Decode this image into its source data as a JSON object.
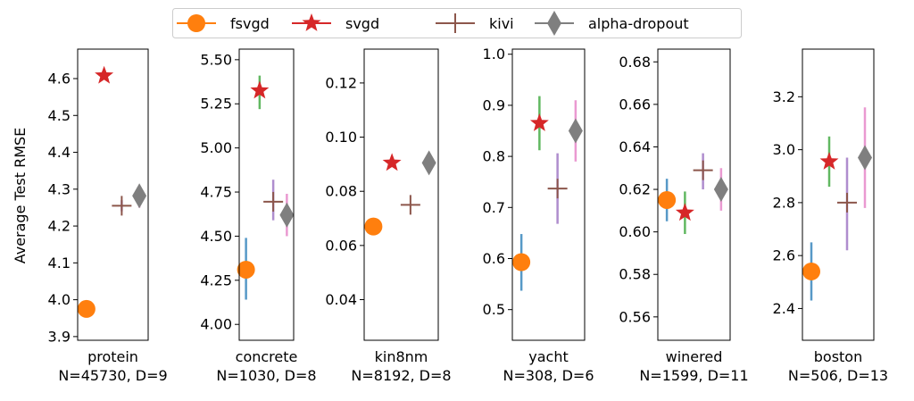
{
  "chart_data": {
    "type": "scatter",
    "ylabel": "Average Test RMSE",
    "legend_position": "top-center",
    "series": [
      {
        "name": "fsvgd",
        "color": "#ff7f0e",
        "marker": "circle",
        "error_color": "#1f77b4"
      },
      {
        "name": "svgd",
        "color": "#d62728",
        "marker": "star",
        "error_color": "#2ca02c"
      },
      {
        "name": "kivi",
        "color": "#8c564b",
        "marker": "plus",
        "error_color": "#9467bd"
      },
      {
        "name": "alpha-dropout",
        "color": "#7f7f7f",
        "marker": "diamond",
        "error_color": "#e377c2"
      }
    ],
    "panels": [
      {
        "name": "protein",
        "info": "N=45730, D=9",
        "ylim": [
          3.89,
          4.68
        ],
        "yticks": [
          3.9,
          4.0,
          4.1,
          4.2,
          4.3,
          4.4,
          4.5,
          4.6
        ],
        "ytick_labels": [
          "3.9",
          "4.0",
          "4.1",
          "4.2",
          "4.3",
          "4.4",
          "4.5",
          "4.6"
        ],
        "points": [
          {
            "series": "fsvgd",
            "value": 3.975,
            "lo": null,
            "hi": null
          },
          {
            "series": "svgd",
            "value": 4.608,
            "lo": null,
            "hi": null
          },
          {
            "series": "kivi",
            "value": 4.255,
            "lo": 4.24,
            "hi": 4.27
          },
          {
            "series": "alpha-dropout",
            "value": 4.282,
            "lo": 4.25,
            "hi": 4.31
          }
        ]
      },
      {
        "name": "concrete",
        "info": "N=1030, D=8",
        "ylim": [
          3.91,
          5.56
        ],
        "yticks": [
          4.0,
          4.25,
          4.5,
          4.75,
          5.0,
          5.25,
          5.5
        ],
        "ytick_labels": [
          "4.00",
          "4.25",
          "4.50",
          "4.75",
          "5.00",
          "5.25",
          "5.50"
        ],
        "points": [
          {
            "series": "fsvgd",
            "value": 4.31,
            "lo": 4.14,
            "hi": 4.49
          },
          {
            "series": "svgd",
            "value": 5.325,
            "lo": 5.22,
            "hi": 5.41
          },
          {
            "series": "kivi",
            "value": 4.695,
            "lo": 4.59,
            "hi": 4.82
          },
          {
            "series": "alpha-dropout",
            "value": 4.62,
            "lo": 4.5,
            "hi": 4.74
          }
        ]
      },
      {
        "name": "kin8nm",
        "info": "N=8192, D=8",
        "ylim": [
          0.025,
          0.1325
        ],
        "yticks": [
          0.04,
          0.06,
          0.08,
          0.1,
          0.12
        ],
        "ytick_labels": [
          "0.04",
          "0.06",
          "0.08",
          "0.10",
          "0.12"
        ],
        "points": [
          {
            "series": "fsvgd",
            "value": 0.067,
            "lo": null,
            "hi": null
          },
          {
            "series": "svgd",
            "value": 0.0905,
            "lo": null,
            "hi": null
          },
          {
            "series": "kivi",
            "value": 0.075,
            "lo": null,
            "hi": null
          },
          {
            "series": "alpha-dropout",
            "value": 0.0905,
            "lo": null,
            "hi": null
          }
        ]
      },
      {
        "name": "yacht",
        "info": "N=308, D=6",
        "ylim": [
          0.44,
          1.01
        ],
        "yticks": [
          0.5,
          0.6,
          0.7,
          0.8,
          0.9,
          1.0
        ],
        "ytick_labels": [
          "0.5",
          "0.6",
          "0.7",
          "0.8",
          "0.9",
          "1.0"
        ],
        "points": [
          {
            "series": "fsvgd",
            "value": 0.593,
            "lo": 0.537,
            "hi": 0.648
          },
          {
            "series": "svgd",
            "value": 0.865,
            "lo": 0.812,
            "hi": 0.918
          },
          {
            "series": "kivi",
            "value": 0.737,
            "lo": 0.668,
            "hi": 0.806
          },
          {
            "series": "alpha-dropout",
            "value": 0.85,
            "lo": 0.79,
            "hi": 0.91
          }
        ]
      },
      {
        "name": "winered",
        "info": "N=1599, D=11",
        "ylim": [
          0.549,
          0.686
        ],
        "yticks": [
          0.56,
          0.58,
          0.6,
          0.62,
          0.64,
          0.66,
          0.68
        ],
        "ytick_labels": [
          "0.56",
          "0.58",
          "0.60",
          "0.62",
          "0.64",
          "0.66",
          "0.68"
        ],
        "points": [
          {
            "series": "fsvgd",
            "value": 0.615,
            "lo": 0.605,
            "hi": 0.625
          },
          {
            "series": "svgd",
            "value": 0.609,
            "lo": 0.599,
            "hi": 0.619
          },
          {
            "series": "kivi",
            "value": 0.629,
            "lo": 0.62,
            "hi": 0.637
          },
          {
            "series": "alpha-dropout",
            "value": 0.62,
            "lo": 0.61,
            "hi": 0.63
          }
        ]
      },
      {
        "name": "boston",
        "info": "N=506, D=13",
        "ylim": [
          2.28,
          3.38
        ],
        "yticks": [
          2.4,
          2.6,
          2.8,
          3.0,
          3.2
        ],
        "ytick_labels": [
          "2.4",
          "2.6",
          "2.8",
          "3.0",
          "3.2"
        ],
        "points": [
          {
            "series": "fsvgd",
            "value": 2.54,
            "lo": 2.43,
            "hi": 2.65
          },
          {
            "series": "svgd",
            "value": 2.955,
            "lo": 2.86,
            "hi": 3.05
          },
          {
            "series": "kivi",
            "value": 2.8,
            "lo": 2.62,
            "hi": 2.97
          },
          {
            "series": "alpha-dropout",
            "value": 2.97,
            "lo": 2.78,
            "hi": 3.16
          }
        ]
      }
    ]
  }
}
